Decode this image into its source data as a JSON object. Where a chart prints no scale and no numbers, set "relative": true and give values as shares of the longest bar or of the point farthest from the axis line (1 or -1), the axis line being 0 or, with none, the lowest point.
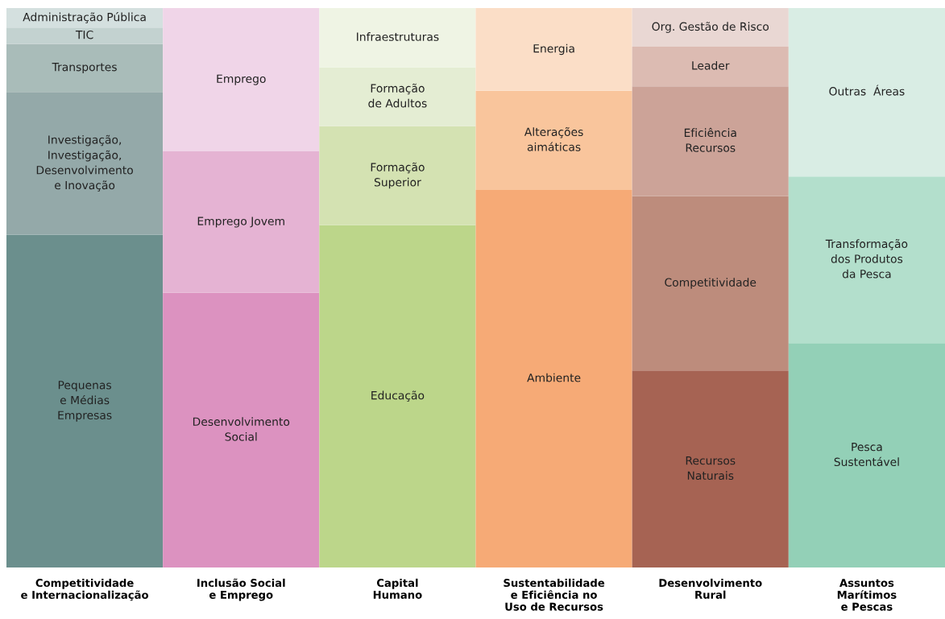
{
  "chart_data": {
    "type": "bar",
    "stacked": true,
    "relative": true,
    "legend": false,
    "grid": false,
    "categories": [
      "Competitividade\ne Internacionalização",
      "Inclusão Social\ne Emprego",
      "Capital\nHumano",
      "Sustentabilidade\ne Eficiência no\nUso de Recursos",
      "Desenvolvimento\nRural",
      "Assuntos\nMarítimos\ne Pescas"
    ],
    "series": [
      {
        "name": "Pequenas\ne Médias\nEmpresas",
        "color": "#6b8f8d",
        "values": [
          0.595,
          null,
          null,
          null,
          null,
          null
        ]
      },
      {
        "name": "Investigação,\nInvestigação,\nDesenvolvimento\ne Inovação",
        "color": "#94a9a9",
        "values": [
          0.255,
          null,
          null,
          null,
          null,
          null
        ]
      },
      {
        "name": "Transportes",
        "color": "#a9bcb9",
        "values": [
          0.086,
          null,
          null,
          null,
          null,
          null
        ]
      },
      {
        "name": "TIC",
        "color": "#c3d2d0",
        "values": [
          0.029,
          null,
          null,
          null,
          null,
          null
        ]
      },
      {
        "name": "Administração Pública",
        "color": "#d4e0df",
        "values": [
          0.035,
          null,
          null,
          null,
          null,
          null
        ]
      },
      {
        "name": "Desenvolvimento\nSocial",
        "color": "#dc92c0",
        "values": [
          null,
          0.491,
          null,
          null,
          null,
          null
        ]
      },
      {
        "name": "Emprego Jovem",
        "color": "#e5b3d3",
        "values": [
          null,
          0.253,
          null,
          null,
          null,
          null
        ]
      },
      {
        "name": "Emprego",
        "color": "#f0d5e8",
        "values": [
          null,
          0.256,
          null,
          null,
          null,
          null
        ]
      },
      {
        "name": "Educação",
        "color": "#bcd68a",
        "values": [
          null,
          null,
          0.612,
          null,
          null,
          null
        ]
      },
      {
        "name": "Formação\nSuperior",
        "color": "#d4e2b2",
        "values": [
          null,
          null,
          0.177,
          null,
          null,
          null
        ]
      },
      {
        "name": "Formação\nde Adultos",
        "color": "#e4edd3",
        "values": [
          null,
          null,
          0.105,
          null,
          null,
          null
        ]
      },
      {
        "name": "Infraestruturas",
        "color": "#eff4e4",
        "values": [
          null,
          null,
          0.106,
          null,
          null,
          null
        ]
      },
      {
        "name": "Ambiente",
        "color": "#f6aa76",
        "values": [
          null,
          null,
          null,
          0.675,
          null,
          null
        ]
      },
      {
        "name": "Alterações\naimáticas",
        "color": "#f9c59c",
        "values": [
          null,
          null,
          null,
          0.177,
          null,
          null
        ]
      },
      {
        "name": "Energia",
        "color": "#fbdec7",
        "values": [
          null,
          null,
          null,
          0.148,
          null,
          null
        ]
      },
      {
        "name": "Recursos\nNaturais",
        "color": "#a66353",
        "values": [
          null,
          null,
          null,
          null,
          0.352,
          null
        ]
      },
      {
        "name": "Competitividade",
        "color": "#bd8c7c",
        "values": [
          null,
          null,
          null,
          null,
          0.312,
          null
        ]
      },
      {
        "name": "Eficiência\nRecursos",
        "color": "#cca398",
        "values": [
          null,
          null,
          null,
          null,
          0.196,
          null
        ]
      },
      {
        "name": "Leader",
        "color": "#dcbbb2",
        "values": [
          null,
          null,
          null,
          null,
          0.071,
          null
        ]
      },
      {
        "name": "Org. Gestão de Risco",
        "color": "#e9d7d3",
        "values": [
          null,
          null,
          null,
          null,
          0.069,
          null
        ]
      },
      {
        "name": "Pesca\nSustentável",
        "color": "#93d0b7",
        "values": [
          null,
          null,
          null,
          null,
          null,
          0.401
        ]
      },
      {
        "name": "Transformação\ndos Produtos\nda Pesca",
        "color": "#b3dfcc",
        "values": [
          null,
          null,
          null,
          null,
          null,
          0.298
        ]
      },
      {
        "name": "Outras  Áreas",
        "color": "#d9ede4",
        "values": [
          null,
          null,
          null,
          null,
          null,
          0.301
        ]
      }
    ]
  }
}
